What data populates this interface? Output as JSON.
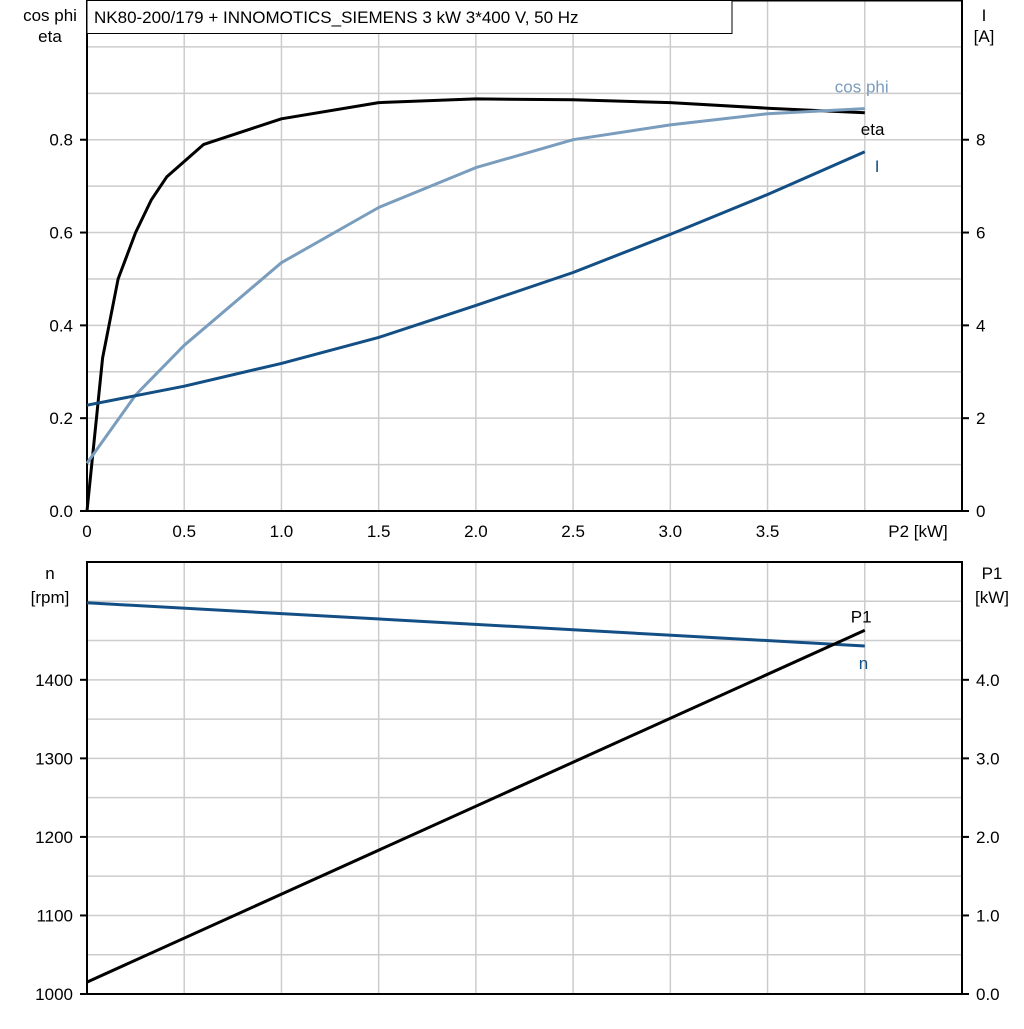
{
  "chart_data": [
    {
      "type": "line",
      "title": "NK80-200/179 + INNOMOTICS_SIEMENS   3 kW   3*400 V, 50 Hz",
      "xlabel": "P2 [kW]",
      "ylabel_left": [
        "cos phi",
        "eta"
      ],
      "ylabel_right": [
        "I",
        "[A]"
      ],
      "xlim": [
        0,
        4.5
      ],
      "ylim_left": [
        0,
        1.1
      ],
      "ylim_right": [
        0,
        11
      ],
      "x_ticks": [
        "0",
        "0.5",
        "1.0",
        "1.5",
        "2.0",
        "2.5",
        "3.0",
        "3.5"
      ],
      "y_left_ticks": [
        "0.0",
        "0.2",
        "0.4",
        "0.6",
        "0.8"
      ],
      "y_right_ticks": [
        "0",
        "2",
        "4",
        "6",
        "8"
      ],
      "grid": true,
      "series": [
        {
          "name": "eta",
          "axis": "left",
          "color": "#000000",
          "x": [
            0,
            0.08,
            0.16,
            0.25,
            0.33,
            0.41,
            0.6,
            1.0,
            1.5,
            2.0,
            2.5,
            3.0,
            3.5,
            4.0
          ],
          "y": [
            0,
            0.33,
            0.5,
            0.6,
            0.67,
            0.72,
            0.79,
            0.845,
            0.88,
            0.888,
            0.886,
            0.88,
            0.868,
            0.858
          ]
        },
        {
          "name": "cos phi",
          "axis": "left",
          "color": "#7a9dbd",
          "x": [
            0,
            0.25,
            0.5,
            1.0,
            1.5,
            2.0,
            2.5,
            3.0,
            3.5,
            4.0
          ],
          "y": [
            0.103,
            0.25,
            0.357,
            0.535,
            0.654,
            0.74,
            0.8,
            0.832,
            0.856,
            0.867
          ]
        },
        {
          "name": "I",
          "axis": "right",
          "color": "#134f85",
          "x": [
            0,
            0.5,
            1.0,
            1.5,
            2.0,
            2.5,
            3.0,
            3.5,
            4.0
          ],
          "y": [
            2.28,
            2.69,
            3.18,
            3.74,
            4.43,
            5.14,
            5.96,
            6.82,
            7.74
          ]
        }
      ]
    },
    {
      "type": "line",
      "ylabel_left": [
        "n",
        "[rpm]"
      ],
      "ylabel_right": [
        "P1",
        "[kW]"
      ],
      "xlim": [
        0,
        4.5
      ],
      "ylim_left": [
        1000,
        1550
      ],
      "ylim_right": [
        0,
        5.5
      ],
      "y_left_ticks": [
        "1000",
        "1100",
        "1200",
        "1300",
        "1400"
      ],
      "y_right_ticks": [
        "0.0",
        "1.0",
        "2.0",
        "3.0",
        "4.0"
      ],
      "grid": true,
      "series": [
        {
          "name": "n",
          "axis": "left",
          "color": "#134f85",
          "x": [
            0,
            4.0
          ],
          "y": [
            1498,
            1443
          ]
        },
        {
          "name": "P1",
          "axis": "right",
          "color": "#000000",
          "x": [
            0,
            4.0
          ],
          "y": [
            0.152,
            4.63
          ]
        }
      ]
    }
  ]
}
